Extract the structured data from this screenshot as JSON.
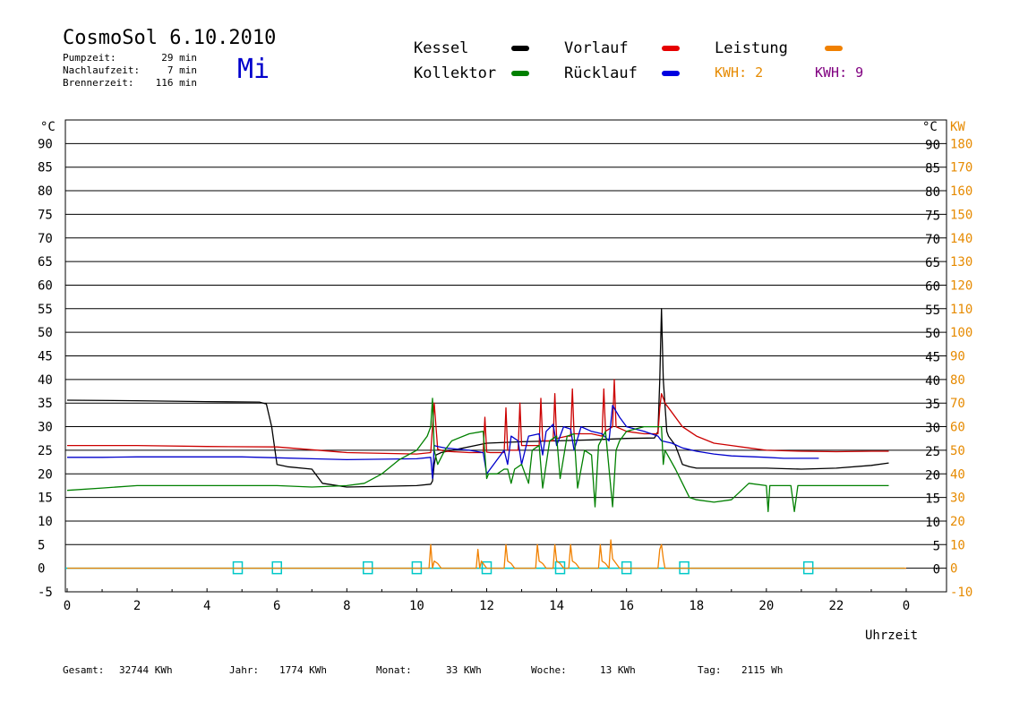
{
  "header": {
    "title": "CosmoSol 6.10.2010",
    "day": "Mi",
    "info": [
      {
        "label": "Pumpzeit:",
        "value": "29 min"
      },
      {
        "label": "Nachlaufzeit:",
        "value": "7 min"
      },
      {
        "label": "Brennerzeit:",
        "value": "116 min"
      }
    ]
  },
  "legend": {
    "kessel": {
      "label": "Kessel",
      "color": "#000000"
    },
    "vorlauf": {
      "label": "Vorlauf",
      "color": "#e60000"
    },
    "leistung": {
      "label": "Leistung",
      "color": "#f08000"
    },
    "kollektor": {
      "label": "Kollektor",
      "color": "#008000"
    },
    "ruecklauf": {
      "label": "Rücklauf",
      "color": "#0000e0"
    },
    "kwh1": "KWH: 2",
    "kwh2": "KWH: 9"
  },
  "axis": {
    "y_left_unit": "°C",
    "y_right_unit": "°C",
    "y_right2_unit": "KW",
    "xlabel": "Uhrzeit"
  },
  "footer": {
    "gesamt_label": "Gesamt:",
    "gesamt_value": "32744 KWh",
    "jahr_label": "Jahr:",
    "jahr_value": "1774 KWh",
    "monat_label": "Monat:",
    "monat_value": "33 KWh",
    "woche_label": "Woche:",
    "woche_value": "13 KWh",
    "tag_label": "Tag:",
    "tag_value": "2115 Wh"
  },
  "chart_data": {
    "type": "line",
    "xlim": [
      0,
      24
    ],
    "ylim": [
      -5,
      95
    ],
    "y2lim": [
      -10,
      190
    ],
    "x_ticks": [
      "0",
      "2",
      "4",
      "6",
      "8",
      "10",
      "12",
      "14",
      "16",
      "18",
      "20",
      "22",
      "0"
    ],
    "y_ticks": [
      "-5",
      "0",
      "5",
      "10",
      "15",
      "20",
      "25",
      "30",
      "35",
      "40",
      "45",
      "50",
      "55",
      "60",
      "65",
      "70",
      "75",
      "80",
      "85",
      "90"
    ],
    "y_ticks_right": [
      "0",
      "5",
      "10",
      "15",
      "20",
      "25",
      "30",
      "35",
      "40",
      "45",
      "50",
      "55",
      "60",
      "65",
      "70",
      "75",
      "80",
      "85",
      "90"
    ],
    "y2_ticks": [
      "-10",
      "0",
      "10",
      "20",
      "30",
      "40",
      "50",
      "60",
      "70",
      "80",
      "90",
      "100",
      "110",
      "120",
      "130",
      "140",
      "150",
      "160",
      "170",
      "180"
    ],
    "grid": true,
    "series": [
      {
        "name": "Kessel",
        "color": "#000000",
        "x": [
          0,
          2,
          4,
          5.5,
          5.7,
          5.85,
          6.0,
          6.3,
          7.0,
          7.3,
          8,
          10,
          10.4,
          10.45,
          10.5,
          10.55,
          10.7,
          12,
          13,
          14,
          15,
          16,
          16.8,
          16.9,
          16.95,
          17.0,
          17.05,
          17.15,
          17.2,
          17.4,
          17.6,
          17.8,
          18.0,
          18.5,
          20,
          21,
          22,
          23,
          23.5
        ],
        "y": [
          35.6,
          35.5,
          35.3,
          35.2,
          34.8,
          30,
          22,
          21.5,
          21,
          18,
          17.2,
          17.5,
          17.8,
          18.5,
          22,
          24,
          24.5,
          26.5,
          26.8,
          27,
          27.2,
          27.5,
          27.6,
          29,
          40,
          55,
          40,
          29,
          28,
          26,
          22,
          21.5,
          21.2,
          21.2,
          21.2,
          21,
          21.2,
          21.8,
          22.3
        ]
      },
      {
        "name": "Vorlauf",
        "color": "#cc0000",
        "x": [
          0,
          2,
          4,
          6,
          8,
          10,
          10.4,
          10.45,
          10.5,
          10.6,
          10.8,
          11.5,
          11.9,
          11.95,
          12.0,
          12.1,
          12.5,
          12.55,
          12.6,
          12.9,
          12.95,
          13.0,
          13.3,
          13.5,
          13.55,
          13.6,
          13.9,
          13.95,
          14.0,
          14.3,
          14.4,
          14.45,
          14.5,
          15.0,
          15.3,
          15.35,
          15.4,
          15.6,
          15.65,
          15.7,
          16.0,
          16.5,
          16.9,
          16.95,
          17.0,
          17.05,
          17.1,
          17.3,
          17.6,
          18.0,
          18.5,
          19,
          19.5,
          20,
          21,
          22,
          23,
          23.5
        ],
        "y": [
          26,
          26,
          25.8,
          25.7,
          24.5,
          24.2,
          24.5,
          30,
          35,
          25.2,
          24.8,
          24.5,
          24.5,
          32,
          24.6,
          24.5,
          24.5,
          34,
          25,
          25,
          35,
          26,
          26,
          26,
          36,
          27,
          27,
          37,
          27.5,
          28,
          28,
          38,
          28.5,
          28.5,
          28,
          38,
          29,
          30,
          40,
          30,
          29,
          28.5,
          28.5,
          34,
          37,
          36,
          35,
          33,
          30,
          28,
          26.5,
          26,
          25.5,
          25,
          24.8,
          24.7,
          24.8,
          24.8
        ]
      },
      {
        "name": "Rücklauf",
        "color": "#0000cc",
        "x": [
          0,
          1,
          2,
          4,
          5,
          6,
          7,
          8,
          10,
          10.4,
          10.45,
          10.5,
          10.6,
          10.8,
          11.5,
          11.9,
          12.0,
          12.1,
          12.5,
          12.6,
          12.7,
          12.9,
          13.0,
          13.2,
          13.5,
          13.6,
          13.7,
          13.9,
          14.0,
          14.2,
          14.4,
          14.5,
          14.7,
          15.0,
          15.3,
          15.5,
          15.6,
          15.8,
          16.0,
          16.5,
          16.9,
          17.0,
          17.3,
          17.6,
          18.0,
          18.5,
          19,
          20,
          20.5,
          21,
          21.5
        ],
        "y": [
          23.5,
          23.5,
          23.6,
          23.6,
          23.6,
          23.4,
          23.2,
          23,
          23.2,
          23.5,
          19,
          26,
          25.8,
          25.5,
          25,
          24.5,
          20,
          21,
          25,
          22,
          28,
          27,
          22,
          28,
          28.5,
          24,
          29,
          30.5,
          26,
          30,
          29.5,
          25,
          30,
          29,
          28.5,
          27,
          34.5,
          32,
          30,
          29,
          28,
          27,
          26.5,
          25.5,
          24.8,
          24.2,
          23.8,
          23.5,
          23.3,
          23.3,
          23.3
        ]
      },
      {
        "name": "Kollektor",
        "color": "#008000",
        "x": [
          0,
          1,
          2,
          3,
          4,
          5,
          6,
          7,
          8,
          8.5,
          9,
          9.5,
          10,
          10.3,
          10.4,
          10.45,
          10.5,
          10.6,
          10.8,
          11,
          11.5,
          11.9,
          12.0,
          12.05,
          12.3,
          12.5,
          12.6,
          12.7,
          12.8,
          13.0,
          13.2,
          13.3,
          13.5,
          13.6,
          13.8,
          14.0,
          14.1,
          14.3,
          14.5,
          14.6,
          14.8,
          15.0,
          15.1,
          15.2,
          15.4,
          15.6,
          15.7,
          15.8,
          16,
          16.5,
          17,
          17.05,
          17.1,
          17.4,
          17.6,
          17.8,
          18,
          18.5,
          19,
          19.5,
          20,
          20.05,
          20.1,
          20.5,
          20.7,
          20.8,
          20.9,
          21,
          21.5,
          22,
          23,
          23.5
        ],
        "y": [
          16.5,
          17,
          17.5,
          17.5,
          17.5,
          17.5,
          17.5,
          17.2,
          17.5,
          18,
          20,
          23,
          25,
          28,
          30,
          36,
          25,
          22,
          25,
          27,
          28.5,
          29,
          19,
          20,
          20,
          21,
          21,
          18,
          21,
          22,
          18,
          25,
          26,
          17,
          27,
          28,
          19,
          28,
          28.5,
          17,
          25,
          24,
          13,
          26,
          29,
          13,
          25,
          27,
          29,
          30,
          30,
          22,
          25,
          21,
          18,
          15,
          14.5,
          14,
          14.5,
          18,
          17.5,
          12,
          17.5,
          17.5,
          17.5,
          12,
          17.5,
          17.5,
          17.5,
          17.5,
          17.5,
          17.5
        ]
      },
      {
        "name": "Leistung",
        "color": "#f08000",
        "axis": "y2",
        "x": [
          0,
          10.35,
          10.4,
          10.45,
          10.5,
          10.6,
          10.7,
          11.7,
          11.75,
          11.8,
          11.85,
          11.9,
          12.0,
          12.5,
          12.55,
          12.6,
          12.7,
          12.8,
          13.4,
          13.45,
          13.5,
          13.6,
          13.7,
          13.9,
          13.95,
          14.0,
          14.1,
          14.2,
          14.35,
          14.4,
          14.45,
          14.55,
          14.65,
          15.2,
          15.25,
          15.3,
          15.4,
          15.5,
          15.55,
          15.6,
          15.7,
          15.8,
          16.9,
          16.95,
          17.0,
          17.05,
          17.1,
          24
        ],
        "y": [
          0,
          0,
          10,
          0,
          3,
          2,
          0,
          0,
          8,
          0,
          3,
          2,
          0,
          0,
          10,
          3,
          2,
          0,
          0,
          10,
          3,
          2,
          0,
          0,
          10,
          3,
          2,
          0,
          0,
          10,
          3,
          2,
          0,
          0,
          10,
          3,
          2,
          0,
          12,
          4,
          2,
          0,
          0,
          8,
          10,
          4,
          0,
          0
        ]
      }
    ],
    "markers": {
      "name": "Pumpe",
      "color": "#00c8c8",
      "x": [
        4.88,
        6.0,
        8.6,
        10.0,
        12.0,
        14.1,
        16.0,
        17.65,
        21.2
      ]
    }
  }
}
